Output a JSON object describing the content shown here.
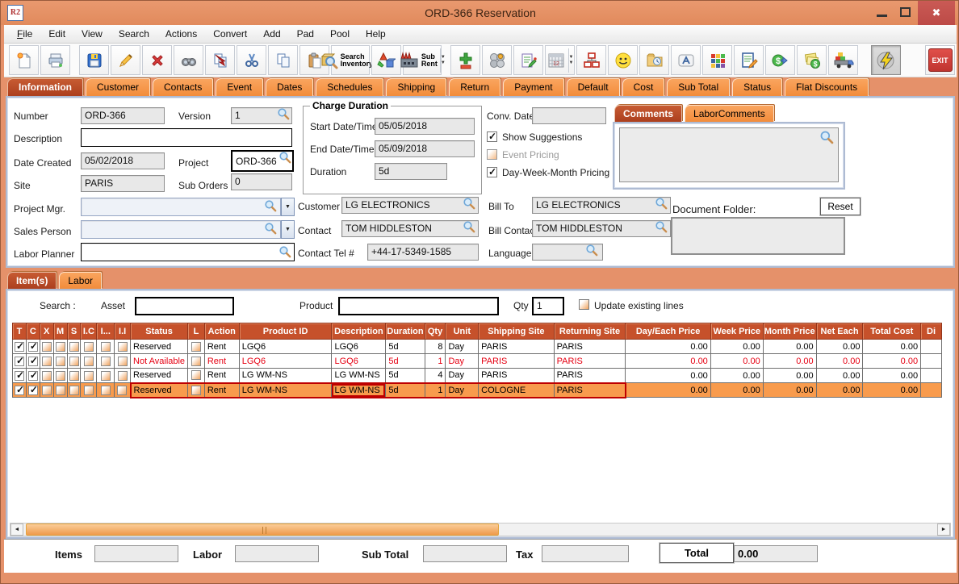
{
  "window": {
    "title": "ORD-366 Reservation",
    "app_icon_text": "R2"
  },
  "menu": {
    "items": [
      "File",
      "Edit",
      "View",
      "Search",
      "Actions",
      "Convert",
      "Add",
      "Pad",
      "Pool",
      "Help"
    ]
  },
  "toolbar": {
    "search_inventory_line1": "Search",
    "search_inventory_line2": "Inventory",
    "sub_rent": "Sub Rent",
    "exit": "EXIT",
    "icons": [
      "new-document",
      "printer",
      "floppy-save",
      "pencil-edit",
      "delete-x",
      "binoculars-find",
      "copy-arrow",
      "scissors-cut",
      "copy-pages",
      "clipboard-paste",
      "search-inventory",
      "3d-shapes",
      "factory-sub-rent",
      "plus-minus",
      "group-circles",
      "notepad",
      "calendar",
      "org-chart",
      "smiley",
      "folder-clock",
      "keycap",
      "color-cubes",
      "document-pencil",
      "dollar-transfer",
      "dollar-notes",
      "truck",
      "lightning",
      "exit"
    ]
  },
  "tabs": {
    "selected": "Information",
    "main": [
      "Information",
      "Customer",
      "Contacts",
      "Event",
      "Dates",
      "Schedules",
      "Shipping",
      "Return",
      "Payment",
      "Default",
      "Cost",
      "Sub Total",
      "Status",
      "Flat Discounts"
    ]
  },
  "info": {
    "number": {
      "label": "Number",
      "value": "ORD-366"
    },
    "version": {
      "label": "Version",
      "value": "1"
    },
    "description": {
      "label": "Description",
      "value": ""
    },
    "date_created": {
      "label": "Date Created",
      "value": "05/02/2018"
    },
    "project": {
      "label": "Project",
      "value": "ORD-366"
    },
    "site": {
      "label": "Site",
      "value": "PARIS"
    },
    "sub_orders": {
      "label": "Sub Orders",
      "value": "0"
    },
    "project_mgr": {
      "label": "Project Mgr.",
      "value": ""
    },
    "sales_person": {
      "label": "Sales Person",
      "value": ""
    },
    "labor_planner": {
      "label": "Labor Planner",
      "value": ""
    },
    "charge_duration": {
      "title": "Charge Duration",
      "start_label": "Start Date/Time",
      "start": "05/05/2018",
      "end_label": "End Date/Time",
      "end": "05/09/2018",
      "duration_label": "Duration",
      "duration": "5d"
    },
    "conv_date": {
      "label": "Conv. Date",
      "value": ""
    },
    "checkboxes": {
      "show_suggestions": {
        "label": "Show Suggestions",
        "checked": true
      },
      "event_pricing": {
        "label": "Event Pricing",
        "checked": false
      },
      "dwm_pricing": {
        "label": "Day-Week-Month Pricing",
        "checked": true
      }
    },
    "customer": {
      "label": "Customer",
      "value": "LG ELECTRONICS"
    },
    "bill_to": {
      "label": "Bill To",
      "value": "LG ELECTRONICS"
    },
    "contact": {
      "label": "Contact",
      "value": "TOM HIDDLESTON"
    },
    "bill_contact": {
      "label": "Bill Contact",
      "value": "TOM HIDDLESTON"
    },
    "contact_tel": {
      "label": "Contact Tel #",
      "value": "+44-17-5349-1585"
    },
    "language": {
      "label": "Language",
      "value": ""
    },
    "comments_tabs": [
      "Comments",
      "LaborComments"
    ],
    "comments_text": "",
    "document_folder": {
      "label": "Document Folder:",
      "reset_label": "Reset",
      "value": ""
    }
  },
  "items_section": {
    "tabs": [
      "Item(s)",
      "Labor"
    ],
    "search": {
      "label": "Search :",
      "asset_label": "Asset",
      "asset_value": "",
      "product_label": "Product",
      "product_value": "",
      "qty_label": "Qty",
      "qty_value": "1",
      "update_label": "Update existing lines",
      "update_checked": false
    }
  },
  "items_table": {
    "columns": [
      "T",
      "C",
      "X",
      "M",
      "S",
      "I.C",
      "I...",
      "I.I",
      "Status",
      "L",
      "Action",
      "Product ID",
      "Description",
      "Duration",
      "Qty",
      "Unit",
      "Shipping Site",
      "Returning Site",
      "Day/Each Price",
      "Week Price",
      "Month Price",
      "Net Each",
      "Total Cost",
      "Di"
    ],
    "rows": [
      {
        "t": true,
        "c": true,
        "x": false,
        "m": false,
        "s": false,
        "ic": false,
        "idots": false,
        "ii": false,
        "l": false,
        "status": "Reserved",
        "action": "Rent",
        "product_id": "LGQ6",
        "description": "LGQ6",
        "duration": "5d",
        "qty": "8",
        "unit": "Day",
        "shipping_site": "PARIS",
        "returning_site": "PARIS",
        "day_each": "0.00",
        "week": "0.00",
        "month": "0.00",
        "net_each": "0.00",
        "total_cost": "0.00",
        "di": "",
        "state": "normal"
      },
      {
        "t": true,
        "c": true,
        "x": false,
        "m": false,
        "s": false,
        "ic": false,
        "idots": false,
        "ii": false,
        "l": false,
        "status": "Not Available",
        "action": "Rent",
        "product_id": "LGQ6",
        "description": "LGQ6",
        "duration": "5d",
        "qty": "1",
        "unit": "Day",
        "shipping_site": "PARIS",
        "returning_site": "PARIS",
        "day_each": "0.00",
        "week": "0.00",
        "month": "0.00",
        "net_each": "0.00",
        "total_cost": "0.00",
        "di": "",
        "state": "unavailable"
      },
      {
        "t": true,
        "c": true,
        "x": false,
        "m": false,
        "s": false,
        "ic": false,
        "idots": false,
        "ii": false,
        "l": false,
        "status": "Reserved",
        "action": "Rent",
        "product_id": "LG WM-NS",
        "description": "LG WM-NS",
        "duration": "5d",
        "qty": "4",
        "unit": "Day",
        "shipping_site": "PARIS",
        "returning_site": "PARIS",
        "day_each": "0.00",
        "week": "0.00",
        "month": "0.00",
        "net_each": "0.00",
        "total_cost": "0.00",
        "di": "",
        "state": "normal"
      },
      {
        "t": true,
        "c": true,
        "x": false,
        "m": false,
        "s": false,
        "ic": false,
        "idots": false,
        "ii": false,
        "l": false,
        "status": "Reserved",
        "action": "Rent",
        "product_id": "LG WM-NS",
        "description": "LG WM-NS",
        "duration": "5d",
        "qty": "1",
        "unit": "Day",
        "shipping_site": "COLOGNE",
        "returning_site": "PARIS",
        "day_each": "0.00",
        "week": "0.00",
        "month": "0.00",
        "net_each": "0.00",
        "total_cost": "0.00",
        "di": "",
        "state": "selected"
      }
    ]
  },
  "totals": {
    "items_label": "Items",
    "items_value": "",
    "labor_label": "Labor",
    "labor_value": "",
    "sub_total_label": "Sub Total",
    "sub_total_value": "",
    "tax_label": "Tax",
    "tax_value": "",
    "total_label": "Total",
    "total_value": "0.00"
  }
}
